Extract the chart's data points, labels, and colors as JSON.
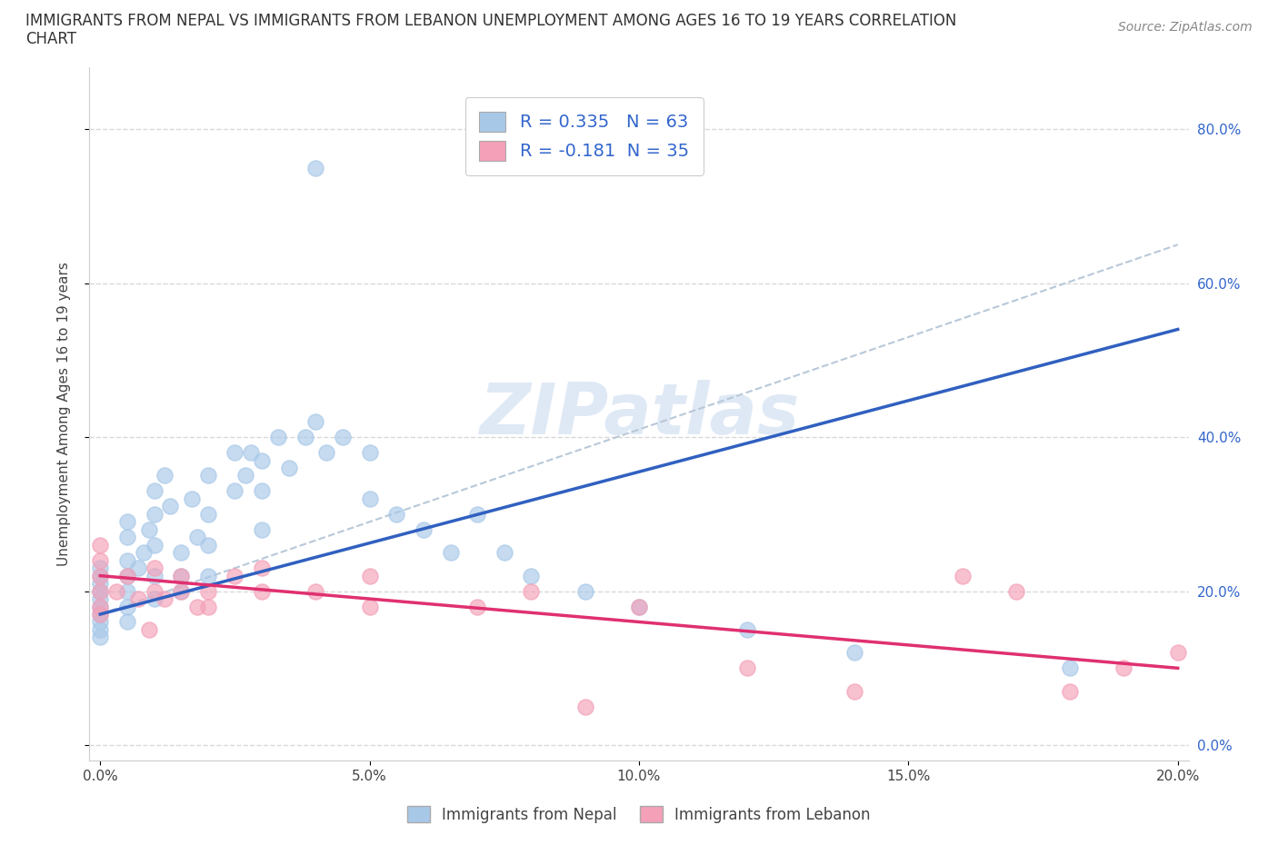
{
  "title_line1": "IMMIGRANTS FROM NEPAL VS IMMIGRANTS FROM LEBANON UNEMPLOYMENT AMONG AGES 16 TO 19 YEARS CORRELATION",
  "title_line2": "CHART",
  "source": "Source: ZipAtlas.com",
  "ylabel": "Unemployment Among Ages 16 to 19 years",
  "xlim": [
    -0.002,
    0.202
  ],
  "ylim": [
    -0.02,
    0.88
  ],
  "x_ticks": [
    0.0,
    0.05,
    0.1,
    0.15,
    0.2
  ],
  "y_ticks": [
    0.0,
    0.2,
    0.4,
    0.6,
    0.8
  ],
  "y_tick_labels_right": [
    "0.0%",
    "20.0%",
    "40.0%",
    "60.0%",
    "80.0%"
  ],
  "x_tick_labels": [
    "0.0%",
    "5.0%",
    "10.0%",
    "15.0%",
    "20.0%"
  ],
  "nepal_color": "#a8c8e8",
  "lebanon_color": "#f4a0b8",
  "nepal_R": 0.335,
  "nepal_N": 63,
  "lebanon_R": -0.181,
  "lebanon_N": 35,
  "nepal_line_color": "#3060c0",
  "lebanon_line_color": "#e03070",
  "trend_line_color": "#b8c8d8",
  "watermark": "ZIPatlas",
  "legend_text_color": "#3366cc",
  "background_color": "#ffffff",
  "grid_color": "#d8d8d8",
  "nepal_scatter_x": [
    0.0,
    0.0,
    0.0,
    0.0,
    0.0,
    0.0,
    0.0,
    0.0,
    0.0,
    0.0,
    0.005,
    0.005,
    0.005,
    0.005,
    0.005,
    0.005,
    0.005,
    0.007,
    0.008,
    0.009,
    0.01,
    0.01,
    0.01,
    0.01,
    0.01,
    0.012,
    0.013,
    0.015,
    0.015,
    0.015,
    0.017,
    0.018,
    0.02,
    0.02,
    0.02,
    0.02,
    0.025,
    0.025,
    0.027,
    0.028,
    0.03,
    0.03,
    0.03,
    0.033,
    0.035,
    0.038,
    0.04,
    0.04,
    0.042,
    0.045,
    0.05,
    0.05,
    0.055,
    0.06,
    0.065,
    0.07,
    0.075,
    0.08,
    0.09,
    0.1,
    0.12,
    0.14,
    0.18
  ],
  "nepal_scatter_y": [
    0.18,
    0.19,
    0.2,
    0.21,
    0.22,
    0.23,
    0.17,
    0.16,
    0.15,
    0.14,
    0.2,
    0.22,
    0.24,
    0.18,
    0.16,
    0.27,
    0.29,
    0.23,
    0.25,
    0.28,
    0.3,
    0.33,
    0.26,
    0.22,
    0.19,
    0.35,
    0.31,
    0.25,
    0.22,
    0.2,
    0.32,
    0.27,
    0.35,
    0.3,
    0.26,
    0.22,
    0.38,
    0.33,
    0.35,
    0.38,
    0.37,
    0.33,
    0.28,
    0.4,
    0.36,
    0.4,
    0.75,
    0.42,
    0.38,
    0.4,
    0.38,
    0.32,
    0.3,
    0.28,
    0.25,
    0.3,
    0.25,
    0.22,
    0.2,
    0.18,
    0.15,
    0.12,
    0.1
  ],
  "lebanon_scatter_x": [
    0.0,
    0.0,
    0.0,
    0.0,
    0.0,
    0.0,
    0.003,
    0.005,
    0.007,
    0.009,
    0.01,
    0.01,
    0.012,
    0.015,
    0.015,
    0.018,
    0.02,
    0.02,
    0.025,
    0.03,
    0.03,
    0.04,
    0.05,
    0.05,
    0.07,
    0.08,
    0.09,
    0.1,
    0.12,
    0.14,
    0.16,
    0.17,
    0.18,
    0.19,
    0.2
  ],
  "lebanon_scatter_y": [
    0.2,
    0.22,
    0.18,
    0.17,
    0.24,
    0.26,
    0.2,
    0.22,
    0.19,
    0.15,
    0.2,
    0.23,
    0.19,
    0.2,
    0.22,
    0.18,
    0.18,
    0.2,
    0.22,
    0.23,
    0.2,
    0.2,
    0.22,
    0.18,
    0.18,
    0.2,
    0.05,
    0.18,
    0.1,
    0.07,
    0.22,
    0.2,
    0.07,
    0.1,
    0.12
  ],
  "nepal_line_x0": 0.0,
  "nepal_line_x1": 0.2,
  "nepal_line_y0": 0.17,
  "nepal_line_y1": 0.54,
  "lebanon_line_x0": 0.0,
  "lebanon_line_x1": 0.2,
  "lebanon_line_y0": 0.22,
  "lebanon_line_y1": 0.1,
  "dash_line_x0": 0.0,
  "dash_line_x1": 0.2,
  "dash_line_y0": 0.17,
  "dash_line_y1": 0.65
}
